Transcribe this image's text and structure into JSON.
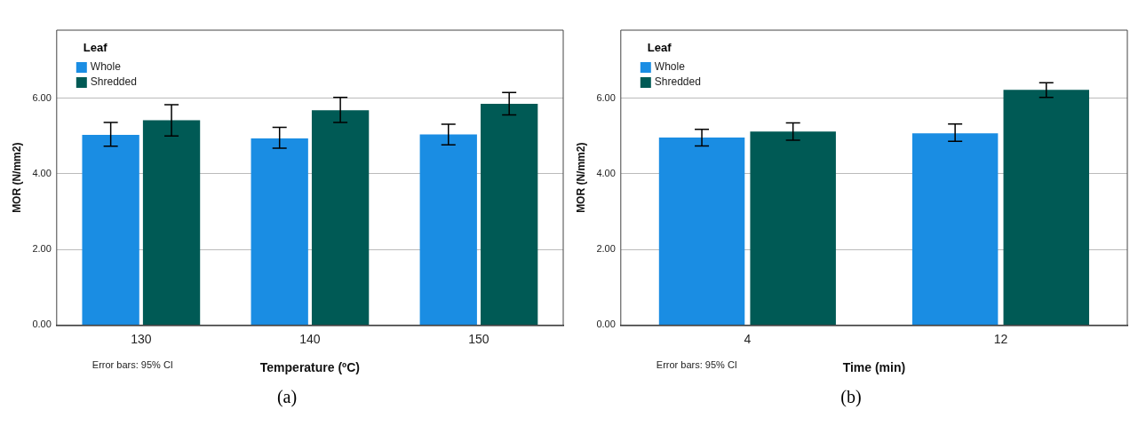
{
  "chart_data": [
    {
      "type": "bar",
      "xlabel": "Temperature (ºC)",
      "ylabel": "MOR (N/mm2)",
      "legend_title": "Leaf",
      "categories": [
        "130",
        "140",
        "150"
      ],
      "series": [
        {
          "name": "Whole",
          "color": "#1a8de3",
          "values": [
            5.03,
            4.94,
            5.04
          ],
          "errors": [
            [
              4.73,
              5.36
            ],
            [
              4.68,
              5.23
            ],
            [
              4.77,
              5.31
            ]
          ]
        },
        {
          "name": "Shredded",
          "color": "#005a55",
          "values": [
            5.42,
            5.68,
            5.85
          ],
          "errors": [
            [
              5.0,
              5.83
            ],
            [
              5.36,
              6.02
            ],
            [
              5.56,
              6.15
            ]
          ]
        }
      ],
      "ylim": [
        0,
        7.8
      ],
      "yticks": [
        {
          "value": 0,
          "label": "0.00"
        },
        {
          "value": 2,
          "label": "2.00"
        },
        {
          "value": 4,
          "label": "4.00"
        },
        {
          "value": 6,
          "label": "6.00"
        }
      ],
      "grid": "y",
      "legend": "top left",
      "annotations": [
        "Error bars: 95% CI",
        "(a)"
      ]
    },
    {
      "type": "bar",
      "xlabel": "Time (min)",
      "ylabel": "MOR (N/mm2)",
      "legend_title": "Leaf",
      "categories": [
        "4",
        "12"
      ],
      "series": [
        {
          "name": "Whole",
          "color": "#1a8de3",
          "values": [
            4.96,
            5.07
          ],
          "errors": [
            [
              4.74,
              5.18
            ],
            [
              4.86,
              5.32
            ]
          ]
        },
        {
          "name": "Shredded",
          "color": "#005a55",
          "values": [
            5.12,
            6.22
          ],
          "errors": [
            [
              4.89,
              5.35
            ],
            [
              6.02,
              6.41
            ]
          ]
        }
      ],
      "ylim": [
        0,
        7.8
      ],
      "yticks": [
        {
          "value": 0,
          "label": "0.00"
        },
        {
          "value": 2,
          "label": "2.00"
        },
        {
          "value": 4,
          "label": "4.00"
        },
        {
          "value": 6,
          "label": "6.00"
        }
      ],
      "grid": "y",
      "legend": "top left",
      "annotations": [
        "Error bars: 95% CI",
        "(b)"
      ]
    }
  ]
}
